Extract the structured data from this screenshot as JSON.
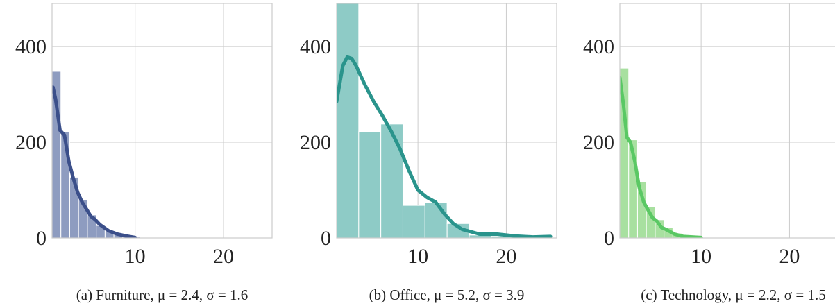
{
  "chart_data": [
    {
      "type": "histogram",
      "caption": "(a) Furniture, μ = 2.4, σ = 1.6",
      "bins": [
        0.6,
        1.6,
        2.6,
        3.6,
        4.6,
        5.6,
        6.6,
        7.6,
        8.6,
        9.6,
        10.6
      ],
      "values": [
        348,
        222,
        127,
        80,
        48,
        26,
        14,
        8,
        5,
        2
      ],
      "color": "#8e9cc0",
      "kde": {
        "x": [
          0.7,
          1.0,
          1.5,
          2.0,
          2.5,
          3.0,
          3.5,
          4.0,
          4.5,
          5.0,
          5.5,
          6.0,
          7.0,
          8.0,
          9.0,
          10.0
        ],
        "values": [
          315,
          290,
          225,
          215,
          160,
          125,
          95,
          75,
          60,
          45,
          38,
          28,
          15,
          8,
          4,
          1
        ],
        "color": "#3b4f8a"
      },
      "xlim": [
        0.6,
        25.5
      ],
      "ylim": [
        0,
        490
      ],
      "xticks": [
        10,
        20
      ],
      "yticks": [
        0,
        200,
        400
      ],
      "grid": true
    },
    {
      "type": "histogram",
      "caption": "(b) Office, μ = 5.2, σ = 3.9",
      "bins": [
        0.8,
        3.3,
        5.8,
        8.3,
        10.8,
        13.3,
        15.8,
        18.3,
        20.8,
        23.3,
        25.8
      ],
      "values": [
        490,
        222,
        238,
        68,
        74,
        30,
        6,
        4,
        2,
        1
      ],
      "color": "#8ecbc6",
      "kde": {
        "x": [
          0.8,
          1.5,
          2.0,
          2.5,
          3.0,
          4.0,
          5.0,
          6.0,
          7.0,
          8.0,
          9.0,
          10.0,
          11.0,
          12.0,
          13.0,
          14.0,
          15.0,
          17.0,
          19.0,
          21.0,
          23.0,
          25.0
        ],
        "values": [
          285,
          360,
          378,
          375,
          360,
          320,
          285,
          255,
          222,
          185,
          140,
          100,
          85,
          75,
          50,
          30,
          18,
          8,
          8,
          4,
          2,
          3
        ],
        "color": "#2a948c"
      },
      "xlim": [
        0.8,
        25.7
      ],
      "ylim": [
        0,
        490
      ],
      "xticks": [
        10,
        20
      ],
      "yticks": [
        0,
        200,
        400
      ],
      "grid": true
    },
    {
      "type": "histogram",
      "caption": "(c) Technology, μ = 2.2, σ = 1.5",
      "bins": [
        0.8,
        1.8,
        2.8,
        3.8,
        4.8,
        5.8,
        6.8,
        7.8,
        8.8,
        9.8
      ],
      "values": [
        355,
        205,
        117,
        65,
        38,
        22,
        10,
        5,
        2
      ],
      "color": "#a8e0a0",
      "kde": {
        "x": [
          0.8,
          1.2,
          1.6,
          2.0,
          2.5,
          3.0,
          3.5,
          4.0,
          4.5,
          5.0,
          5.5,
          6.0,
          7.0,
          8.0,
          10.0
        ],
        "values": [
          335,
          280,
          210,
          200,
          160,
          105,
          75,
          58,
          42,
          35,
          22,
          18,
          8,
          3,
          1
        ],
        "color": "#5ac864"
      },
      "xlim": [
        0.8,
        25.7
      ],
      "ylim": [
        0,
        490
      ],
      "xticks": [
        10,
        20
      ],
      "yticks": [
        0,
        200,
        400
      ],
      "grid": true
    }
  ]
}
